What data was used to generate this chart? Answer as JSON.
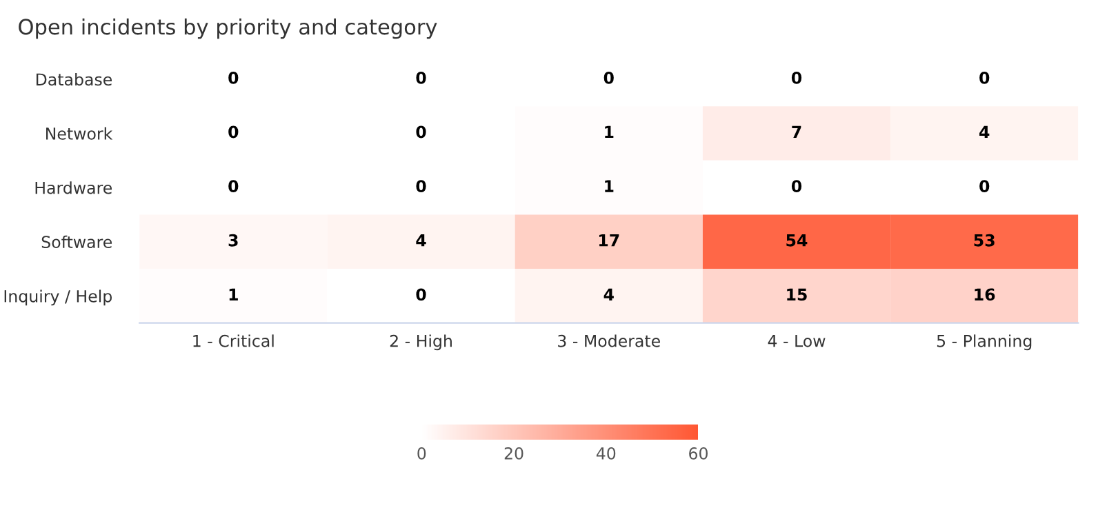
{
  "chart_data": {
    "type": "heatmap",
    "title": "Open incidents by priority and category",
    "categories": [
      "1 - Critical",
      "2 - High",
      "3 - Moderate",
      "4 - Low",
      "5 - Planning"
    ],
    "y_categories": [
      "Database",
      "Network",
      "Hardware",
      "Software",
      "Inquiry / Help"
    ],
    "cells": [
      [
        0,
        0,
        0,
        0,
        0
      ],
      [
        0,
        0,
        1,
        7,
        4
      ],
      [
        0,
        0,
        1,
        0,
        0
      ],
      [
        3,
        4,
        17,
        54,
        53
      ],
      [
        1,
        0,
        4,
        15,
        16
      ]
    ],
    "clim": [
      0,
      60
    ],
    "cticks": [
      0,
      20,
      40,
      60
    ],
    "colors": [
      "#ffffff",
      "#ff5733"
    ],
    "data_labels": true
  }
}
